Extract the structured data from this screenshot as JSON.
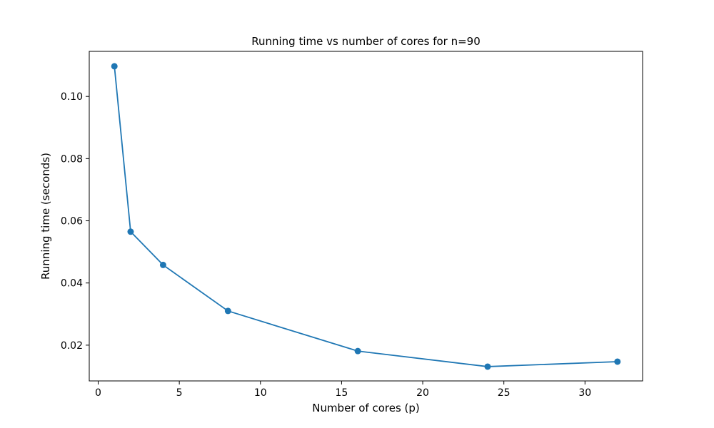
{
  "chart_data": {
    "type": "line",
    "title": "Running time vs number of cores for n=90",
    "xlabel": "Number of cores (p)",
    "ylabel": "Running time (seconds)",
    "xlim": [
      -0.55,
      33.55
    ],
    "ylim": [
      0.0085,
      0.1145
    ],
    "xticks": [
      0,
      5,
      10,
      15,
      20,
      25,
      30
    ],
    "xtick_labels": [
      "0",
      "5",
      "10",
      "15",
      "20",
      "25",
      "30"
    ],
    "yticks": [
      0.02,
      0.04,
      0.06,
      0.08,
      0.1
    ],
    "ytick_labels": [
      "0.02",
      "0.04",
      "0.06",
      "0.08",
      "0.10"
    ],
    "grid": false,
    "legend": false,
    "series": [
      {
        "color": "#1f77b4",
        "marker": "circle",
        "x": [
          1,
          2,
          4,
          8,
          16,
          24,
          32
        ],
        "y": [
          0.1097,
          0.0565,
          0.0458,
          0.031,
          0.0181,
          0.0131,
          0.0147
        ]
      }
    ]
  }
}
